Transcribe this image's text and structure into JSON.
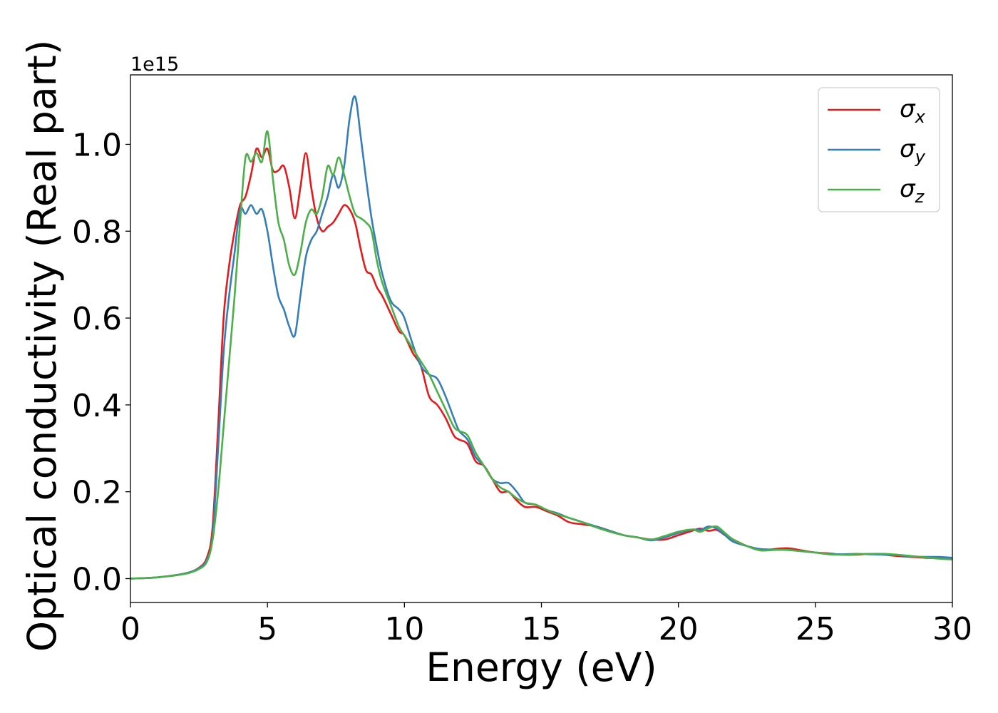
{
  "chart_data": {
    "type": "line",
    "xlabel": "Energy (eV)",
    "ylabel": "Optical conductivity (Real part)",
    "y_exponent_label": "1e15",
    "xlim": [
      0,
      30
    ],
    "ylim": [
      -0.055,
      1.16
    ],
    "xticks": [
      0,
      5,
      10,
      15,
      20,
      25,
      30
    ],
    "xtick_labels": [
      "0",
      "5",
      "10",
      "15",
      "20",
      "25",
      "30"
    ],
    "yticks": [
      0.0,
      0.2,
      0.4,
      0.6,
      0.8,
      1.0
    ],
    "ytick_labels": [
      "0.0",
      "0.2",
      "0.4",
      "0.6",
      "0.8",
      "1.0"
    ],
    "grid": false,
    "legend_position": "top-right",
    "series": [
      {
        "name": "σx",
        "symbol": "σ",
        "subscript": "x",
        "color": "#e41a1c",
        "x": [
          0,
          1,
          2,
          2.5,
          2.8,
          3.0,
          3.2,
          3.4,
          3.6,
          3.8,
          4.0,
          4.2,
          4.4,
          4.6,
          4.8,
          5.0,
          5.2,
          5.4,
          5.6,
          5.8,
          6.0,
          6.2,
          6.4,
          6.6,
          6.8,
          7.0,
          7.2,
          7.4,
          7.6,
          7.8,
          8.0,
          8.2,
          8.4,
          8.6,
          8.8,
          9.0,
          9.2,
          9.5,
          9.8,
          10.0,
          10.3,
          10.6,
          10.9,
          11.2,
          11.5,
          11.8,
          12.0,
          12.3,
          12.6,
          12.9,
          13.2,
          13.5,
          13.8,
          14.1,
          14.4,
          14.8,
          15.2,
          15.6,
          16.0,
          16.5,
          17.0,
          17.5,
          18.0,
          18.5,
          19.0,
          19.5,
          20.0,
          20.5,
          20.8,
          21.1,
          21.4,
          21.7,
          22.0,
          22.5,
          23.0,
          23.5,
          24.0,
          24.5,
          25.0,
          25.5,
          26.0,
          26.5,
          27.0,
          27.5,
          28.0,
          28.5,
          29.0,
          29.5,
          30.0
        ],
        "y": [
          0.0,
          0.003,
          0.012,
          0.025,
          0.05,
          0.12,
          0.35,
          0.6,
          0.72,
          0.8,
          0.86,
          0.88,
          0.93,
          0.99,
          0.97,
          0.99,
          0.94,
          0.94,
          0.95,
          0.9,
          0.83,
          0.9,
          0.98,
          0.9,
          0.83,
          0.8,
          0.81,
          0.82,
          0.84,
          0.86,
          0.85,
          0.82,
          0.76,
          0.71,
          0.7,
          0.67,
          0.65,
          0.61,
          0.57,
          0.56,
          0.52,
          0.49,
          0.42,
          0.4,
          0.37,
          0.33,
          0.32,
          0.31,
          0.27,
          0.26,
          0.23,
          0.2,
          0.2,
          0.18,
          0.165,
          0.165,
          0.155,
          0.145,
          0.13,
          0.125,
          0.12,
          0.11,
          0.1,
          0.095,
          0.09,
          0.09,
          0.1,
          0.11,
          0.115,
          0.11,
          0.112,
          0.1,
          0.09,
          0.075,
          0.065,
          0.068,
          0.07,
          0.065,
          0.06,
          0.058,
          0.055,
          0.055,
          0.057,
          0.055,
          0.052,
          0.05,
          0.048,
          0.047,
          0.046
        ]
      },
      {
        "name": "σy",
        "symbol": "σ",
        "subscript": "y",
        "color": "#377eb8",
        "x": [
          0,
          1,
          2,
          2.5,
          2.8,
          3.0,
          3.2,
          3.4,
          3.6,
          3.8,
          4.0,
          4.2,
          4.4,
          4.6,
          4.8,
          5.0,
          5.2,
          5.4,
          5.6,
          5.8,
          6.0,
          6.2,
          6.4,
          6.6,
          6.8,
          7.0,
          7.2,
          7.4,
          7.6,
          7.8,
          8.0,
          8.2,
          8.4,
          8.6,
          8.8,
          9.0,
          9.2,
          9.5,
          9.8,
          10.0,
          10.3,
          10.6,
          10.9,
          11.2,
          11.5,
          11.8,
          12.0,
          12.3,
          12.6,
          12.9,
          13.2,
          13.5,
          13.8,
          14.1,
          14.4,
          14.8,
          15.2,
          15.6,
          16.0,
          16.5,
          17.0,
          17.5,
          18.0,
          18.5,
          19.0,
          19.5,
          20.0,
          20.5,
          20.8,
          21.1,
          21.4,
          21.7,
          22.0,
          22.5,
          23.0,
          23.5,
          24.0,
          24.5,
          25.0,
          25.5,
          26.0,
          26.5,
          27.0,
          27.5,
          28.0,
          28.5,
          29.0,
          29.5,
          30.0
        ],
        "y": [
          0.0,
          0.003,
          0.012,
          0.024,
          0.045,
          0.1,
          0.3,
          0.52,
          0.65,
          0.75,
          0.85,
          0.84,
          0.86,
          0.84,
          0.85,
          0.8,
          0.72,
          0.65,
          0.62,
          0.58,
          0.56,
          0.65,
          0.74,
          0.78,
          0.8,
          0.84,
          0.88,
          0.93,
          0.9,
          0.95,
          1.06,
          1.11,
          1.02,
          0.92,
          0.83,
          0.76,
          0.7,
          0.64,
          0.62,
          0.6,
          0.54,
          0.49,
          0.47,
          0.46,
          0.42,
          0.37,
          0.34,
          0.32,
          0.28,
          0.26,
          0.23,
          0.22,
          0.22,
          0.2,
          0.175,
          0.17,
          0.158,
          0.15,
          0.14,
          0.13,
          0.12,
          0.11,
          0.1,
          0.095,
          0.088,
          0.095,
          0.105,
          0.113,
          0.112,
          0.12,
          0.115,
          0.1,
          0.085,
          0.075,
          0.068,
          0.067,
          0.066,
          0.063,
          0.06,
          0.057,
          0.056,
          0.057,
          0.056,
          0.055,
          0.054,
          0.051,
          0.05,
          0.05,
          0.048
        ]
      },
      {
        "name": "σz",
        "symbol": "σ",
        "subscript": "z",
        "color": "#4daf4a",
        "x": [
          0,
          1,
          2,
          2.5,
          2.8,
          3.0,
          3.2,
          3.4,
          3.6,
          3.8,
          4.0,
          4.2,
          4.4,
          4.6,
          4.8,
          5.0,
          5.2,
          5.4,
          5.6,
          5.8,
          6.0,
          6.2,
          6.4,
          6.6,
          6.8,
          7.0,
          7.2,
          7.4,
          7.6,
          7.8,
          8.0,
          8.2,
          8.4,
          8.6,
          8.8,
          9.0,
          9.2,
          9.5,
          9.8,
          10.0,
          10.3,
          10.6,
          10.9,
          11.2,
          11.5,
          11.8,
          12.0,
          12.3,
          12.6,
          12.9,
          13.2,
          13.5,
          13.8,
          14.1,
          14.4,
          14.8,
          15.2,
          15.6,
          16.0,
          16.5,
          17.0,
          17.5,
          18.0,
          18.5,
          19.0,
          19.5,
          20.0,
          20.5,
          20.8,
          21.1,
          21.4,
          21.7,
          22.0,
          22.5,
          23.0,
          23.5,
          24.0,
          24.5,
          25.0,
          25.5,
          26.0,
          26.5,
          27.0,
          27.5,
          28.0,
          28.5,
          29.0,
          29.5,
          30.0
        ],
        "y": [
          0.0,
          0.003,
          0.011,
          0.022,
          0.04,
          0.09,
          0.2,
          0.35,
          0.5,
          0.65,
          0.82,
          0.97,
          0.96,
          0.98,
          0.96,
          1.03,
          0.92,
          0.82,
          0.78,
          0.72,
          0.7,
          0.75,
          0.82,
          0.85,
          0.84,
          0.88,
          0.95,
          0.93,
          0.97,
          0.93,
          0.88,
          0.84,
          0.83,
          0.82,
          0.8,
          0.73,
          0.68,
          0.63,
          0.58,
          0.56,
          0.53,
          0.5,
          0.47,
          0.43,
          0.39,
          0.35,
          0.34,
          0.33,
          0.29,
          0.26,
          0.23,
          0.21,
          0.2,
          0.185,
          0.175,
          0.17,
          0.158,
          0.148,
          0.14,
          0.13,
          0.118,
          0.108,
          0.1,
          0.095,
          0.09,
          0.098,
          0.108,
          0.113,
          0.108,
          0.116,
          0.12,
          0.105,
          0.09,
          0.075,
          0.065,
          0.066,
          0.066,
          0.063,
          0.06,
          0.056,
          0.055,
          0.056,
          0.057,
          0.057,
          0.055,
          0.052,
          0.049,
          0.046,
          0.044
        ]
      }
    ]
  }
}
